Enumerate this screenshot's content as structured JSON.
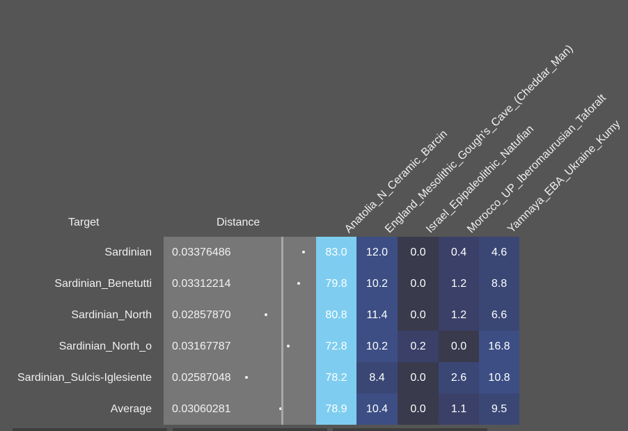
{
  "header": {
    "target_label": "Target",
    "distance_label": "Distance"
  },
  "columns": [
    "Anatolia_N_Ceramic_Barcin",
    "England_Mesolithic_Gough's_Cave_(Cheddar_Man)",
    "Israel_Epipaleolithic_Natufian",
    "Morocco_UP_Iberomaurusian_Taforalt",
    "Yamnaya_EBA_Ukraine_Kumy"
  ],
  "rows": [
    {
      "target": "Sardinian",
      "distance": "0.03376486",
      "values": [
        "83.0",
        "12.0",
        "0.0",
        "0.4",
        "4.6"
      ]
    },
    {
      "target": "Sardinian_Benetutti",
      "distance": "0.03312214",
      "values": [
        "79.8",
        "10.2",
        "0.0",
        "1.2",
        "8.8"
      ]
    },
    {
      "target": "Sardinian_North",
      "distance": "0.02857870",
      "values": [
        "80.8",
        "11.4",
        "0.0",
        "1.2",
        "6.6"
      ]
    },
    {
      "target": "Sardinian_North_o",
      "distance": "0.03167787",
      "values": [
        "72.8",
        "10.2",
        "0.2",
        "0.0",
        "16.8"
      ]
    },
    {
      "target": "Sardinian_Sulcis-Iglesiente",
      "distance": "0.02587048",
      "values": [
        "78.2",
        "8.4",
        "0.0",
        "2.6",
        "10.8"
      ]
    },
    {
      "target": "Average",
      "distance": "0.03060281",
      "values": [
        "78.9",
        "10.4",
        "0.0",
        "1.1",
        "9.5"
      ]
    }
  ],
  "colors": {
    "background": "#555555",
    "distance_cell": "#777777",
    "high": "#7ecdf0",
    "mid_high": "#3c4e84",
    "mid": "#3a4775",
    "low": "#3b4068",
    "zero": "#393a4c"
  }
}
